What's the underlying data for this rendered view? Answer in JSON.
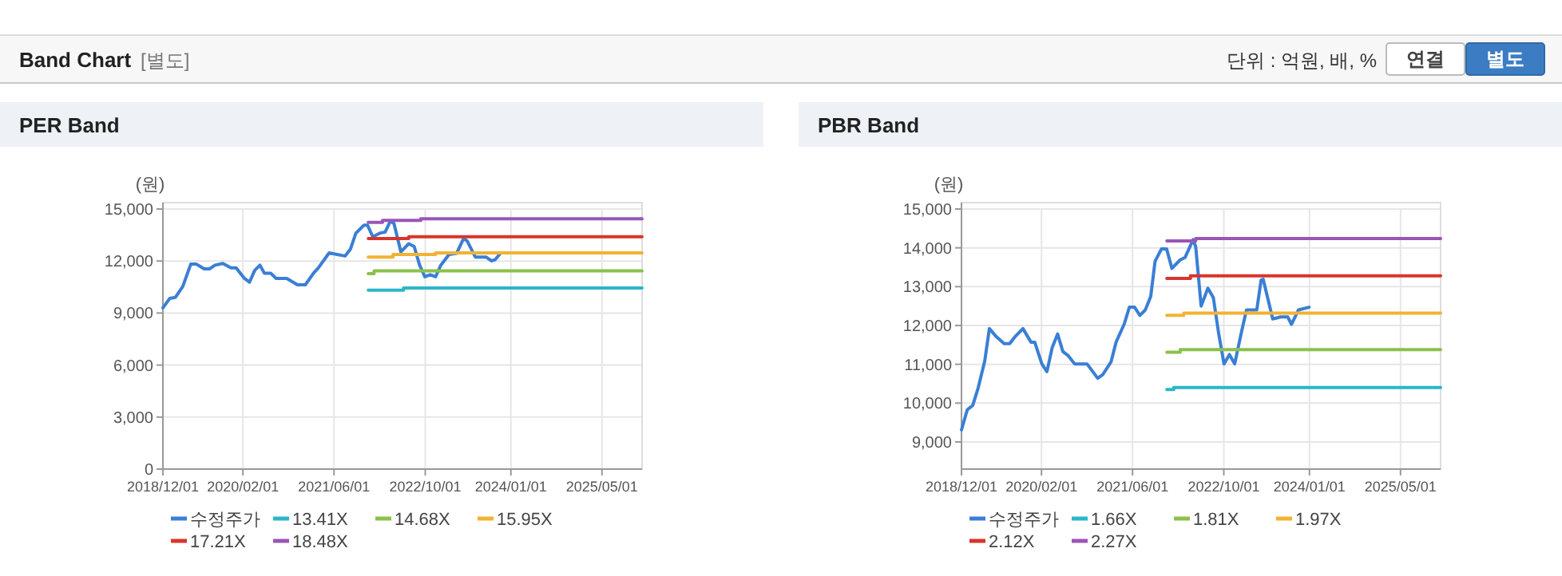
{
  "chart_data": [
    {
      "type": "other",
      "title": "Band Chart",
      "annotations": [
        "[별도]",
        "단위 : 억원, 배, %",
        "연결",
        "별도"
      ]
    },
    {
      "type": "line",
      "title": "PER Band",
      "ylabel": "(원)",
      "grid": true,
      "legend": "bottom",
      "line_style": "solid",
      "xlim": [
        "2018-12-01",
        "2025-12-01"
      ],
      "xticks": [
        {
          "value": "2018-12-01",
          "label": "2018/12/01"
        },
        {
          "value": "2020-02-01",
          "label": "2020/02/01"
        },
        {
          "value": "2021-06-01",
          "label": "2021/06/01"
        },
        {
          "value": "2022-10-01",
          "label": "2022/10/01"
        },
        {
          "value": "2024-01-01",
          "label": "2024/01/01"
        },
        {
          "value": "2025-05-01",
          "label": "2025/05/01"
        }
      ],
      "ylim": [
        0,
        15000
      ],
      "yticks": [
        {
          "value": 0,
          "label": "0"
        },
        {
          "value": 3000,
          "label": "3,000"
        },
        {
          "value": 6000,
          "label": "6,000"
        },
        {
          "value": 9000,
          "label": "9,000"
        },
        {
          "value": 12000,
          "label": "12,000"
        },
        {
          "value": 15000,
          "label": "15,000"
        }
      ],
      "series": [
        {
          "name": "수정주가",
          "type": "line",
          "color": "#3a7fd5",
          "x": [
            "2018-12-01",
            "2019-01-07",
            "2019-02-05",
            "2019-03-17",
            "2019-04-29",
            "2019-05-27",
            "2019-07-09",
            "2019-08-07",
            "2019-09-05",
            "2019-10-17",
            "2019-11-29",
            "2019-12-27",
            "2020-02-09",
            "2020-03-07",
            "2020-04-04",
            "2020-05-02",
            "2020-05-25",
            "2020-06-28",
            "2020-07-27",
            "2020-09-22",
            "2020-11-18",
            "2020-12-30",
            "2021-02-12",
            "2021-03-10",
            "2021-05-06",
            "2021-06-18",
            "2021-07-30",
            "2021-08-28",
            "2021-09-26",
            "2021-11-08",
            "2021-11-27",
            "2021-12-25",
            "2022-02-01",
            "2022-03-01",
            "2022-03-28",
            "2022-04-17",
            "2022-05-24",
            "2022-07-05",
            "2022-08-03",
            "2022-09-01",
            "2022-09-29",
            "2022-10-27",
            "2022-11-25",
            "2022-12-23",
            "2023-02-05",
            "2023-03-17",
            "2023-04-24",
            "2023-05-13",
            "2023-06-25",
            "2023-08-21",
            "2023-09-19",
            "2023-10-08",
            "2023-11-01"
          ],
          "values": [
            9300,
            9850,
            9900,
            10530,
            11830,
            11830,
            11550,
            11550,
            11760,
            11860,
            11610,
            11610,
            11000,
            10780,
            11460,
            11760,
            11300,
            11300,
            11000,
            11000,
            10630,
            10630,
            11300,
            11610,
            12470,
            12380,
            12290,
            12690,
            13610,
            14070,
            14070,
            13400,
            13610,
            13670,
            14290,
            14170,
            12530,
            13000,
            12840,
            11760,
            11090,
            11210,
            11090,
            11760,
            12380,
            12440,
            13300,
            13150,
            12230,
            12230,
            12010,
            12070,
            12380
          ]
        },
        {
          "name": "13.41X",
          "type": "step",
          "color": "#2bb6c9",
          "x": [
            "2021-12-01",
            "2022-06-07",
            "2025-12-01"
          ],
          "values": [
            10320,
            10440,
            10440
          ]
        },
        {
          "name": "14.68X",
          "type": "step",
          "color": "#8cc04b",
          "x": [
            "2021-12-01",
            "2022-01-01",
            "2025-12-01"
          ],
          "values": [
            11270,
            11430,
            11430
          ]
        },
        {
          "name": "15.95X",
          "type": "step",
          "color": "#f2b233",
          "x": [
            "2021-12-01",
            "2022-04-12",
            "2022-11-25",
            "2025-12-01"
          ],
          "values": [
            12230,
            12380,
            12470,
            12470
          ]
        },
        {
          "name": "17.21X",
          "type": "step",
          "color": "#d8352c",
          "x": [
            "2021-12-01",
            "2022-07-05",
            "2025-12-01"
          ],
          "values": [
            13300,
            13400,
            13400
          ]
        },
        {
          "name": "18.48X",
          "type": "step",
          "color": "#9a55b5",
          "x": [
            "2021-12-01",
            "2022-02-15",
            "2022-09-07",
            "2025-12-01"
          ],
          "values": [
            14230,
            14350,
            14440,
            14440
          ]
        }
      ]
    },
    {
      "type": "line",
      "title": "PBR Band",
      "ylabel": "(원)",
      "grid": true,
      "legend": "bottom",
      "line_style": "solid",
      "xlim": [
        "2018-12-01",
        "2025-12-01"
      ],
      "xticks": [
        {
          "value": "2018-12-01",
          "label": "2018/12/01"
        },
        {
          "value": "2020-02-01",
          "label": "2020/02/01"
        },
        {
          "value": "2021-06-01",
          "label": "2021/06/01"
        },
        {
          "value": "2022-10-01",
          "label": "2022/10/01"
        },
        {
          "value": "2024-01-01",
          "label": "2024/01/01"
        },
        {
          "value": "2025-05-01",
          "label": "2025/05/01"
        }
      ],
      "ylim": [
        8300,
        15000
      ],
      "yticks": [
        {
          "value": 9000,
          "label": "9,000"
        },
        {
          "value": 10000,
          "label": "10,000"
        },
        {
          "value": 11000,
          "label": "11,000"
        },
        {
          "value": 12000,
          "label": "12,000"
        },
        {
          "value": 13000,
          "label": "13,000"
        },
        {
          "value": 14000,
          "label": "14,000"
        },
        {
          "value": 15000,
          "label": "15,000"
        }
      ],
      "series": [
        {
          "name": "수정주가",
          "type": "line",
          "color": "#3a7fd5",
          "x": [
            "2018-12-01",
            "2019-01-01",
            "2019-01-30",
            "2019-02-28",
            "2019-04-04",
            "2019-04-29",
            "2019-06-05",
            "2019-07-17",
            "2019-08-15",
            "2019-09-13",
            "2019-10-25",
            "2019-12-07",
            "2019-12-27",
            "2020-02-03",
            "2020-03-01",
            "2020-03-29",
            "2020-04-27",
            "2020-05-25",
            "2020-06-23",
            "2020-07-27",
            "2020-10-01",
            "2020-11-27",
            "2020-12-25",
            "2021-02-06",
            "2021-03-05",
            "2021-04-17",
            "2021-05-15",
            "2021-06-12",
            "2021-07-10",
            "2021-08-08",
            "2021-09-06",
            "2021-09-29",
            "2021-11-02",
            "2021-11-30",
            "2021-12-28",
            "2022-02-10",
            "2022-03-08",
            "2022-04-20",
            "2022-05-04",
            "2022-06-02",
            "2022-07-08",
            "2022-08-06",
            "2022-09-04",
            "2022-10-02",
            "2022-10-31",
            "2022-11-28",
            "2023-01-01",
            "2023-01-30",
            "2023-03-26",
            "2023-04-18",
            "2023-04-29",
            "2023-06-19",
            "2023-08-01",
            "2023-09-07",
            "2023-09-27",
            "2023-11-03",
            "2023-12-30"
          ],
          "values": [
            9310,
            9830,
            9940,
            10390,
            11080,
            11920,
            11710,
            11530,
            11530,
            11710,
            11920,
            11570,
            11570,
            11010,
            10810,
            11430,
            11780,
            11330,
            11220,
            11010,
            11010,
            10640,
            10740,
            11060,
            11570,
            12030,
            12470,
            12470,
            12260,
            12400,
            12750,
            13650,
            13970,
            13970,
            13470,
            13690,
            13750,
            14210,
            14030,
            12500,
            12960,
            12720,
            11780,
            11010,
            11250,
            11010,
            11780,
            12400,
            12400,
            13170,
            13190,
            12170,
            12220,
            12220,
            12030,
            12400,
            12470
          ]
        },
        {
          "name": "1.66X",
          "type": "step",
          "color": "#2bb6c9",
          "x": [
            "2021-12-01",
            "2022-01-07",
            "2025-12-01"
          ],
          "values": [
            10350,
            10400,
            10400
          ]
        },
        {
          "name": "1.81X",
          "type": "step",
          "color": "#8cc04b",
          "x": [
            "2021-12-01",
            "2022-02-10",
            "2025-12-01"
          ],
          "values": [
            11310,
            11380,
            11380
          ]
        },
        {
          "name": "1.97X",
          "type": "step",
          "color": "#f2b233",
          "x": [
            "2021-12-01",
            "2022-03-01",
            "2025-12-01"
          ],
          "values": [
            12260,
            12320,
            12320
          ]
        },
        {
          "name": "2.12X",
          "type": "step",
          "color": "#d8352c",
          "x": [
            "2021-12-01",
            "2022-04-06",
            "2025-12-01"
          ],
          "values": [
            13210,
            13280,
            13280
          ]
        },
        {
          "name": "2.27X",
          "type": "step",
          "color": "#9a55b5",
          "x": [
            "2021-12-01",
            "2022-05-04",
            "2025-12-01"
          ],
          "values": [
            14180,
            14240,
            14240
          ]
        }
      ]
    }
  ]
}
